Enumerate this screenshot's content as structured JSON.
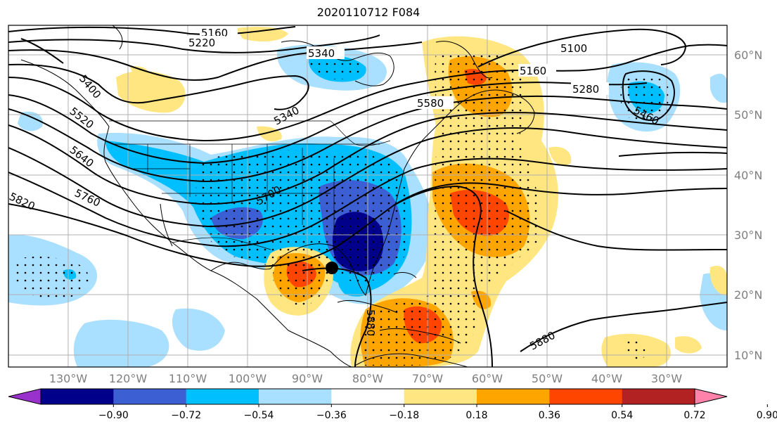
{
  "title": "2020110712 F084",
  "map": {
    "projection": "PlateCarree",
    "lon_range": [
      -140,
      -20
    ],
    "lat_range": [
      7,
      64
    ],
    "lon_ticks": [
      "130°W",
      "120°W",
      "110°W",
      "100°W",
      "90°W",
      "80°W",
      "70°W",
      "60°W",
      "50°W",
      "40°W",
      "30°W"
    ],
    "lat_ticks": [
      "60°N",
      "50°N",
      "40°N",
      "30°N",
      "20°N",
      "10°N"
    ],
    "gridlines": true,
    "marker": {
      "name": "storm-center-marker",
      "lon": -86,
      "lat": 24.5
    }
  },
  "contour_labels": [
    {
      "text": "5160"
    },
    {
      "text": "5220"
    },
    {
      "text": "5340"
    },
    {
      "text": "5100"
    },
    {
      "text": "5400"
    },
    {
      "text": "5160"
    },
    {
      "text": "5280"
    },
    {
      "text": "5520"
    },
    {
      "text": "5580"
    },
    {
      "text": "5340"
    },
    {
      "text": "5460"
    },
    {
      "text": "5640"
    },
    {
      "text": "5760"
    },
    {
      "text": "5700"
    },
    {
      "text": "5820"
    },
    {
      "text": "5880"
    },
    {
      "text": "5880"
    }
  ],
  "colorbar": {
    "ticks": [
      "−0.90",
      "−0.72",
      "−0.54",
      "−0.36",
      "−0.18",
      "0.18",
      "0.36",
      "0.54",
      "0.72",
      "0.90"
    ],
    "colors": [
      "#9932cc",
      "#00008b",
      "#3c5fd4",
      "#00bfff",
      "#a9dfff",
      "#ffffff",
      "#ffe680",
      "#ffa500",
      "#ff4500",
      "#b22222",
      "#ff82ab"
    ],
    "extend": "both"
  }
}
